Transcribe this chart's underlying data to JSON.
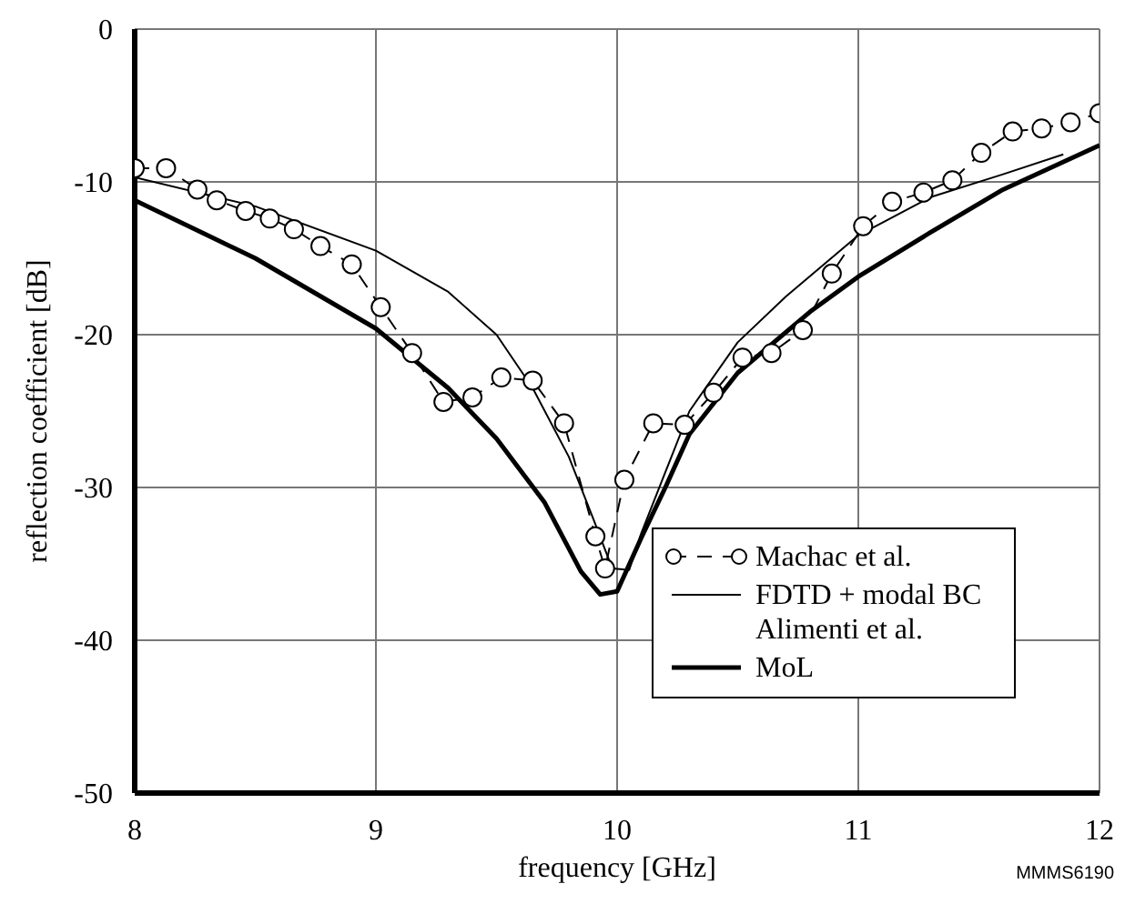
{
  "chart_data": {
    "type": "line",
    "xlabel": "frequency [GHz]",
    "ylabel": "reflection coefficient [dB]",
    "xlim": [
      8,
      12
    ],
    "xticks": [
      8,
      9,
      10,
      11,
      12
    ],
    "ylim": [
      -50,
      0
    ],
    "yticks": [
      -50,
      -40,
      -30,
      -20,
      -10,
      0
    ],
    "grid": true,
    "legend": "bottom right",
    "annotations": [
      "MMMS6190"
    ],
    "series": [
      {
        "name": "Machac et al.",
        "color": "#000000",
        "marker": "circle",
        "line_style": "dashed",
        "x": [
          8,
          8.13,
          8.26,
          8.34,
          8.46,
          8.56,
          8.66,
          8.77,
          8.9,
          9.02,
          9.15,
          9.28,
          9.4,
          9.52,
          9.65,
          9.78,
          9.91,
          9.95,
          10.03,
          10.15,
          10.28,
          10.4,
          10.52,
          10.64,
          10.77,
          10.89,
          11.02,
          11.14,
          11.27,
          11.39,
          11.51,
          11.64,
          11.76,
          11.88,
          12
        ],
        "values": [
          -9.1,
          -9.1,
          -10.5,
          -11.2,
          -11.9,
          -12.4,
          -13.1,
          -14.2,
          -15.4,
          -18.2,
          -21.2,
          -24.4,
          -24.1,
          -22.8,
          -23,
          -25.8,
          -33.2,
          -35.3,
          -29.5,
          -25.8,
          -25.9,
          -23.8,
          -21.5,
          -21.2,
          -19.7,
          -16,
          -12.9,
          -11.3,
          -10.7,
          -9.9,
          -8.1,
          -6.7,
          -6.5,
          -6.1,
          -5.5
        ]
      },
      {
        "name": "FDTD + modal BC Alimenti et al.",
        "color": "#000000",
        "marker": "none",
        "line_style": "solid",
        "x": [
          8,
          8.5,
          9,
          9.3,
          9.5,
          9.65,
          9.8,
          9.9,
          9.98,
          10.05,
          10.1,
          10.2,
          10.3,
          10.5,
          10.7,
          11,
          11.3,
          11.6,
          11.85
        ],
        "values": [
          -9.7,
          -11.6,
          -14.5,
          -17.2,
          -20,
          -23.5,
          -28,
          -32,
          -35.3,
          -35.4,
          -33,
          -29,
          -25,
          -20.5,
          -17.5,
          -13.5,
          -11,
          -9.5,
          -8.2
        ]
      },
      {
        "name": "MoL",
        "color": "#000000",
        "marker": "none",
        "line_style": "solid",
        "x": [
          8,
          8.5,
          9,
          9.3,
          9.5,
          9.7,
          9.85,
          9.93,
          10,
          10.1,
          10.2,
          10.3,
          10.5,
          10.8,
          11,
          11.3,
          11.6,
          12
        ],
        "values": [
          -11.2,
          -15,
          -19.6,
          -23.5,
          -26.8,
          -31,
          -35.5,
          -37,
          -36.8,
          -33.3,
          -30,
          -26.5,
          -22.5,
          -18.5,
          -16.2,
          -13.3,
          -10.5,
          -7.6
        ]
      }
    ]
  }
}
